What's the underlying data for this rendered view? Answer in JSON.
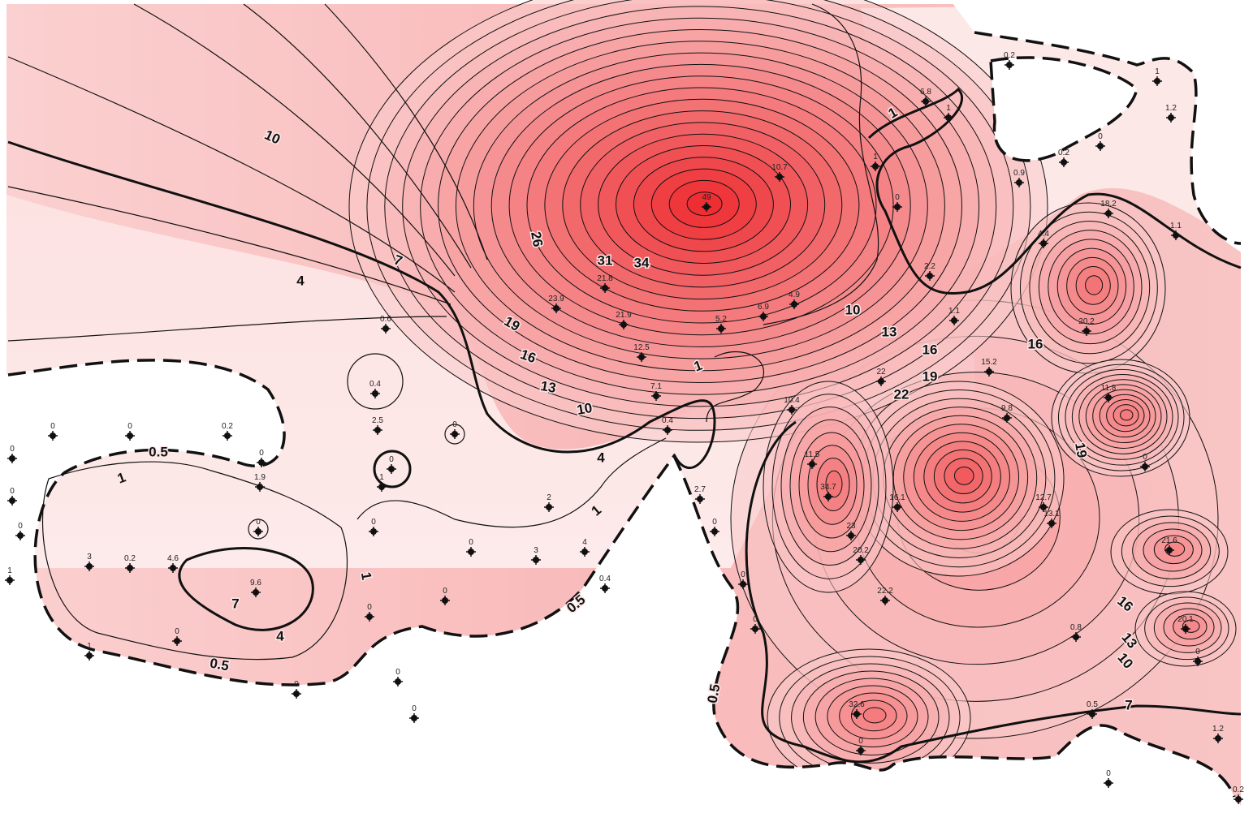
{
  "contour_labels": [
    "10",
    "7",
    "4",
    "26",
    "31",
    "34",
    "19",
    "16",
    "13",
    "10",
    "1",
    "4",
    "1",
    "10",
    "13",
    "16",
    "19",
    "22",
    "16",
    "19",
    "16",
    "13",
    "10",
    "0.5",
    "1",
    "0.5",
    "0.5",
    "1",
    "1",
    "0.5",
    "7",
    "4",
    "7"
  ],
  "wells": [
    "0",
    "0",
    "0.2",
    "0",
    "0",
    "0",
    "0",
    "1",
    "3",
    "0.2",
    "4.6",
    "9.6",
    "0",
    "1.9",
    "0",
    "1",
    "0",
    "0",
    "0",
    "0.6",
    "0.4",
    "2.5",
    "0",
    "1",
    "0",
    "0",
    "0",
    "3",
    "2",
    "4",
    "0.4",
    "0",
    "0",
    "0.4",
    "7.1",
    "12.5",
    "21.9",
    "21.8",
    "23.9",
    "49",
    "10.7",
    "5.2",
    "6.9",
    "4.9",
    "1.1",
    "6.8",
    "1",
    "0.2",
    "1",
    "1.2",
    "0",
    "0.2",
    "0.9",
    "1",
    "0",
    "2.2",
    "1.1",
    "20.2",
    "18.2",
    "4.4",
    "11.8",
    "10.4",
    "11.5",
    "22",
    "16.1",
    "34.7",
    "23",
    "20.2",
    "22.2",
    "15.2",
    "9.8",
    "12.7",
    "13.1",
    "21.6",
    "20.1",
    "0.8",
    "0.5",
    "1.2",
    "0.2",
    "0",
    "32.6",
    "0",
    "2.7",
    "0",
    "0",
    "0",
    "0",
    "0"
  ]
}
